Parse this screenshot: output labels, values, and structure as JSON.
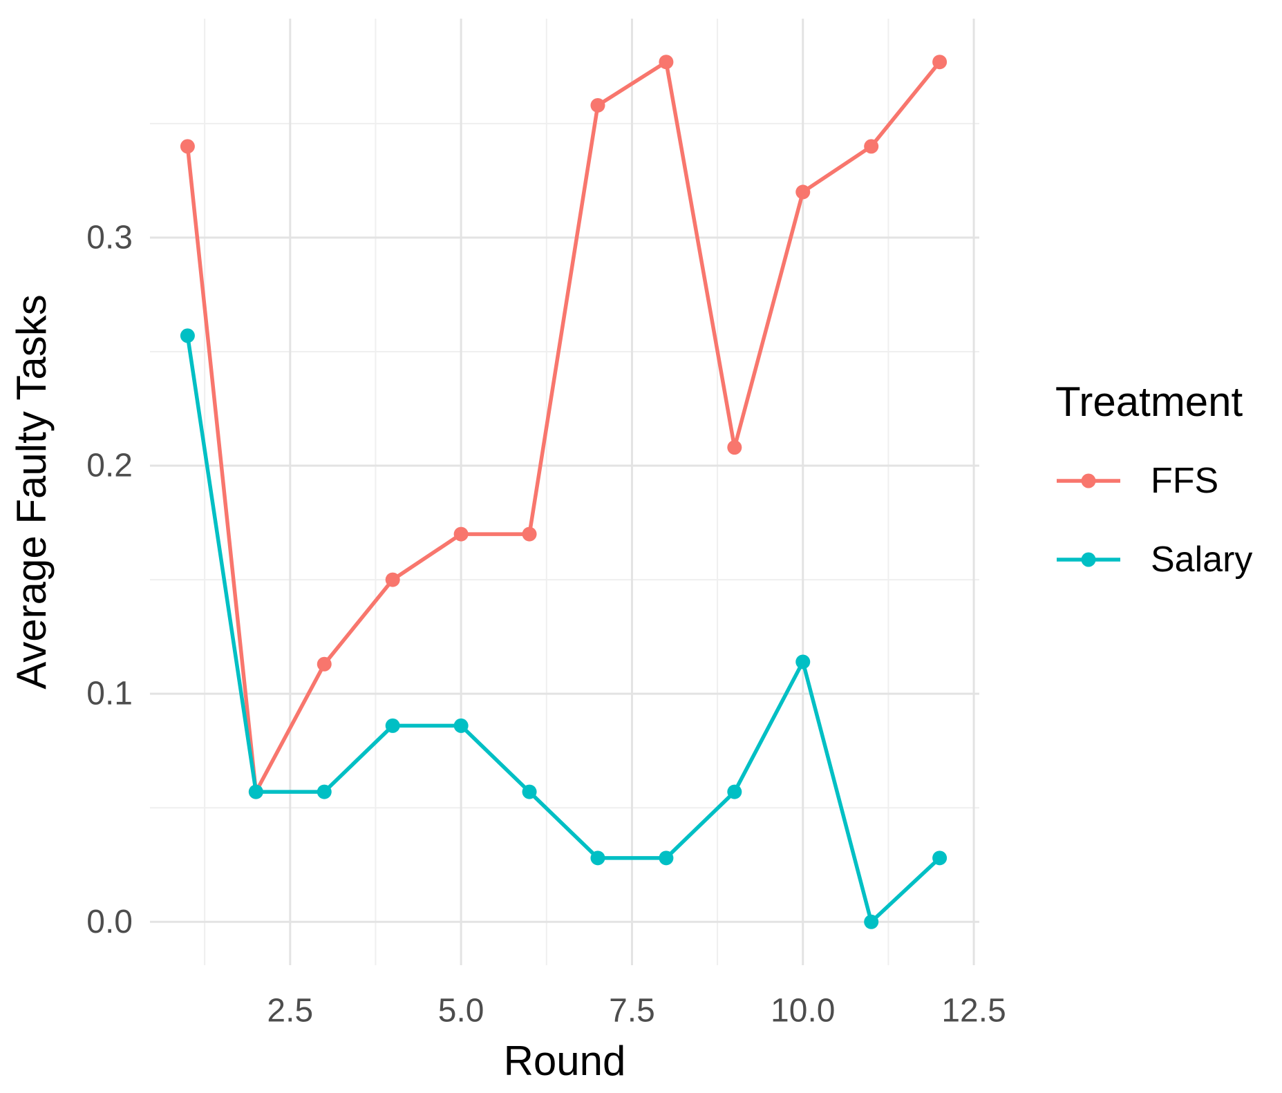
{
  "chart_data": {
    "type": "line",
    "title": "",
    "xlabel": "Round",
    "ylabel": "Average Faulty Tasks",
    "x": [
      1,
      2,
      3,
      4,
      5,
      6,
      7,
      8,
      9,
      10,
      11,
      12
    ],
    "series": [
      {
        "name": "FFS",
        "color": "#F8766D",
        "values": [
          0.34,
          0.057,
          0.113,
          0.15,
          0.17,
          0.17,
          0.358,
          0.377,
          0.208,
          0.32,
          0.34,
          0.377
        ]
      },
      {
        "name": "Salary",
        "color": "#00BFC4",
        "values": [
          0.257,
          0.057,
          0.057,
          0.086,
          0.086,
          0.057,
          0.028,
          0.028,
          0.057,
          0.114,
          0.0,
          0.028
        ]
      }
    ],
    "x_ticks": {
      "values": [
        2.5,
        5.0,
        7.5,
        10.0,
        12.5
      ],
      "labels": [
        "2.5",
        "5.0",
        "7.5",
        "10.0",
        "12.5"
      ]
    },
    "y_ticks": {
      "values": [
        0.0,
        0.1,
        0.2,
        0.3
      ],
      "labels": [
        "0.0",
        "0.1",
        "0.2",
        "0.3"
      ]
    },
    "x_minor": [
      1.25,
      3.75,
      6.25,
      8.75,
      11.25
    ],
    "y_minor": [
      0.05,
      0.15,
      0.25,
      0.35
    ],
    "xlim": [
      0.45,
      12.58
    ],
    "ylim": [
      -0.019,
      0.396
    ],
    "grid": "major-and-minor, light gray on white, no axis lines or tick marks",
    "legend": {
      "title": "Treatment",
      "position": "right",
      "entries": [
        {
          "label": "FFS",
          "color": "#F8766D"
        },
        {
          "label": "Salary",
          "color": "#00BFC4"
        }
      ]
    },
    "style": {
      "major_grid_color": "#e3e3e3",
      "minor_grid_color": "#efefef",
      "tick_label_color": "#4d4d4d",
      "title_color": "#000000",
      "line_width": 5.5,
      "marker_radius": 10.5
    }
  }
}
